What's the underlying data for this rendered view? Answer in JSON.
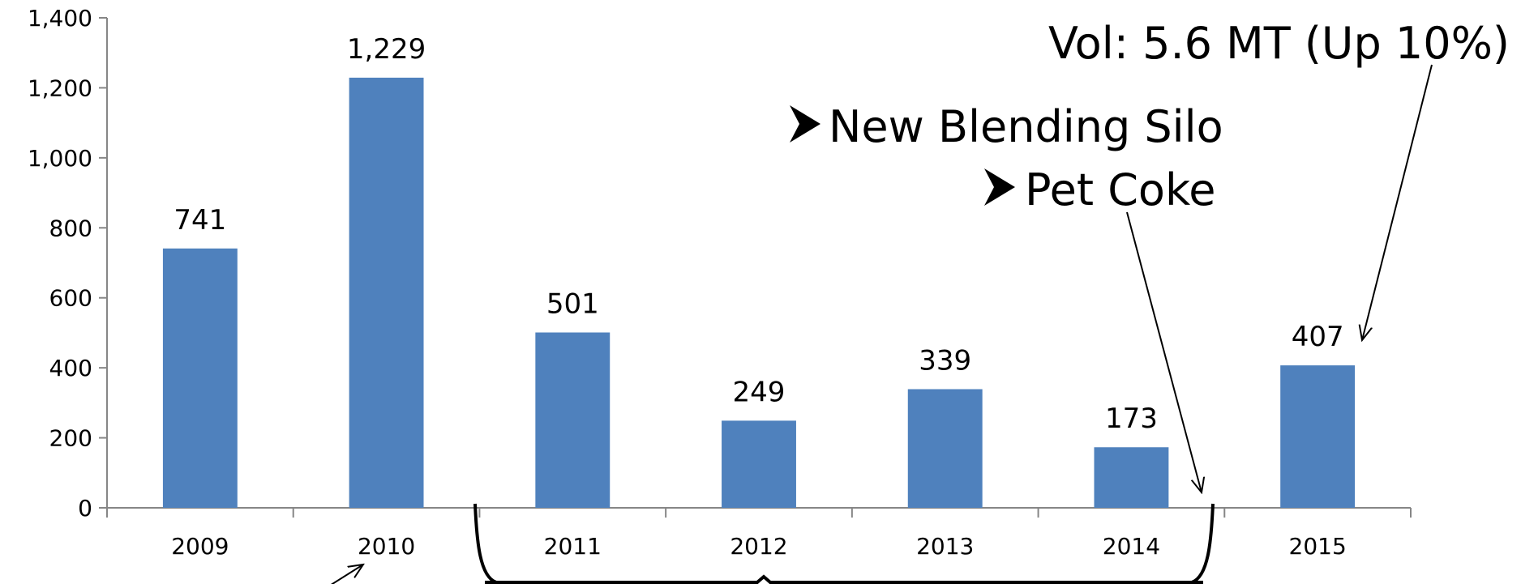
{
  "chart_data": {
    "type": "bar",
    "categories": [
      "2009",
      "2010",
      "2011",
      "2012",
      "2013",
      "2014",
      "2015"
    ],
    "values": [
      741,
      1229,
      501,
      249,
      339,
      173,
      407
    ],
    "data_labels": [
      "741",
      "1,229",
      "501",
      "249",
      "339",
      "173",
      "407"
    ],
    "ylim": [
      0,
      1400
    ],
    "yticks": [
      0,
      200,
      400,
      600,
      800,
      1000,
      1200,
      1400
    ],
    "ytick_labels": [
      "0",
      "200",
      "400",
      "600",
      "800",
      "1,000",
      "1,200",
      "1,400"
    ],
    "title": "",
    "xlabel": "",
    "ylabel": "",
    "grid": false,
    "bar_color": "#4F81BD"
  },
  "annotations": {
    "volume": "Vol:  5.6 MT (Up 10%)",
    "bullet_1": "New Blending Silo",
    "bullet_2": "Pet Coke"
  }
}
